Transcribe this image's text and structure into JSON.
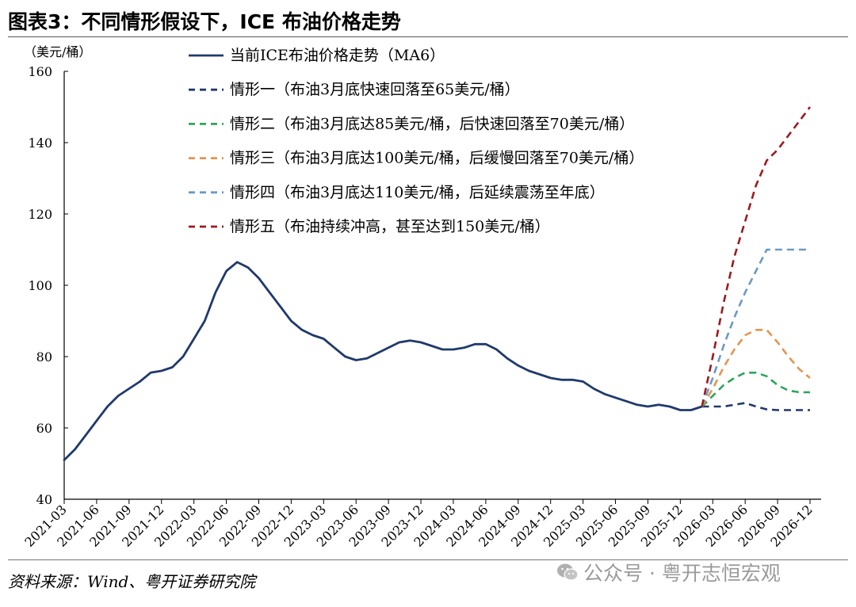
{
  "header": {
    "title": "图表3：不同情形假设下，ICE 布油价格走势",
    "unit": "（美元/桶）"
  },
  "footer": {
    "source": "资料来源：Wind、粤开证券研究院",
    "watermark": "公众号 · 粤开志恒宏观"
  },
  "chart_data": {
    "type": "line",
    "ylabel": "（美元/桶）",
    "ylim": [
      40,
      160
    ],
    "yticks": [
      40,
      60,
      80,
      100,
      120,
      140,
      160
    ],
    "xlim": [
      "2021-03",
      "2026-12"
    ],
    "xticks": [
      "2021-03",
      "2021-06",
      "2021-09",
      "2021-12",
      "2022-03",
      "2022-06",
      "2022-09",
      "2022-12",
      "2023-03",
      "2023-06",
      "2023-09",
      "2023-12",
      "2024-03",
      "2024-06",
      "2024-09",
      "2024-12",
      "2025-03",
      "2025-06",
      "2025-09",
      "2025-12",
      "2026-03",
      "2026-06",
      "2026-09",
      "2026-12"
    ],
    "grid": false,
    "legend_position": "top",
    "series": [
      {
        "name": "当前ICE布油价格走势（MA6）",
        "color": "#1f3a6b",
        "dash": "solid",
        "points": [
          [
            "2021-03",
            51
          ],
          [
            "2021-04",
            54
          ],
          [
            "2021-05",
            58
          ],
          [
            "2021-06",
            62
          ],
          [
            "2021-07",
            66
          ],
          [
            "2021-08",
            69
          ],
          [
            "2021-09",
            71
          ],
          [
            "2021-10",
            73
          ],
          [
            "2021-11",
            75.5
          ],
          [
            "2021-12",
            76
          ],
          [
            "2022-01",
            77
          ],
          [
            "2022-02",
            80
          ],
          [
            "2022-03",
            85
          ],
          [
            "2022-04",
            90
          ],
          [
            "2022-05",
            98
          ],
          [
            "2022-06",
            104
          ],
          [
            "2022-07",
            106.5
          ],
          [
            "2022-08",
            105
          ],
          [
            "2022-09",
            102
          ],
          [
            "2022-10",
            98
          ],
          [
            "2022-11",
            94
          ],
          [
            "2022-12",
            90
          ],
          [
            "2023-01",
            87.5
          ],
          [
            "2023-02",
            86
          ],
          [
            "2023-03",
            85
          ],
          [
            "2023-04",
            82.5
          ],
          [
            "2023-05",
            80
          ],
          [
            "2023-06",
            79
          ],
          [
            "2023-07",
            79.5
          ],
          [
            "2023-08",
            81
          ],
          [
            "2023-09",
            82.5
          ],
          [
            "2023-10",
            84
          ],
          [
            "2023-11",
            84.5
          ],
          [
            "2023-12",
            84
          ],
          [
            "2024-01",
            83
          ],
          [
            "2024-02",
            82
          ],
          [
            "2024-03",
            82
          ],
          [
            "2024-04",
            82.5
          ],
          [
            "2024-05",
            83.5
          ],
          [
            "2024-06",
            83.5
          ],
          [
            "2024-07",
            82
          ],
          [
            "2024-08",
            79.5
          ],
          [
            "2024-09",
            77.5
          ],
          [
            "2024-10",
            76
          ],
          [
            "2024-11",
            75
          ],
          [
            "2024-12",
            74
          ],
          [
            "2025-01",
            73.5
          ],
          [
            "2025-02",
            73.5
          ],
          [
            "2025-03",
            73
          ],
          [
            "2025-04",
            71
          ],
          [
            "2025-05",
            69.5
          ],
          [
            "2025-06",
            68.5
          ],
          [
            "2025-07",
            67.5
          ],
          [
            "2025-08",
            66.5
          ],
          [
            "2025-09",
            66
          ],
          [
            "2025-10",
            66.5
          ],
          [
            "2025-11",
            66
          ],
          [
            "2025-12",
            65
          ],
          [
            "2026-01",
            65
          ],
          [
            "2026-02",
            66
          ]
        ]
      },
      {
        "name": "情形一（布油3月底快速回落至65美元/桶）",
        "color": "#1f3a6b",
        "dash": "dashed",
        "points": [
          [
            "2026-02",
            66
          ],
          [
            "2026-03",
            66
          ],
          [
            "2026-04",
            66
          ],
          [
            "2026-05",
            66.5
          ],
          [
            "2026-06",
            67
          ],
          [
            "2026-07",
            66
          ],
          [
            "2026-08",
            65.2
          ],
          [
            "2026-09",
            65
          ],
          [
            "2026-10",
            65
          ],
          [
            "2026-11",
            65
          ],
          [
            "2026-12",
            65
          ]
        ]
      },
      {
        "name": "情形二（布油3月底达85美元/桶，后快速回落至70美元/桶）",
        "color": "#2aa65a",
        "dash": "dashed",
        "points": [
          [
            "2026-02",
            66
          ],
          [
            "2026-03",
            69
          ],
          [
            "2026-04",
            72
          ],
          [
            "2026-05",
            74
          ],
          [
            "2026-06",
            75.5
          ],
          [
            "2026-07",
            75.5
          ],
          [
            "2026-08",
            74.5
          ],
          [
            "2026-09",
            72
          ],
          [
            "2026-10",
            70.5
          ],
          [
            "2026-11",
            70
          ],
          [
            "2026-12",
            70
          ]
        ]
      },
      {
        "name": "情形三（布油3月底达100美元/桶，后缓慢回落至70美元/桶）",
        "color": "#e3954e",
        "dash": "dashed",
        "points": [
          [
            "2026-02",
            66
          ],
          [
            "2026-03",
            71
          ],
          [
            "2026-04",
            77
          ],
          [
            "2026-05",
            82
          ],
          [
            "2026-06",
            86
          ],
          [
            "2026-07",
            87.5
          ],
          [
            "2026-08",
            87.5
          ],
          [
            "2026-09",
            84
          ],
          [
            "2026-10",
            80
          ],
          [
            "2026-11",
            76.5
          ],
          [
            "2026-12",
            74
          ]
        ]
      },
      {
        "name": "情形四（布油3月底达110美元/桶，后延续震荡至年底）",
        "color": "#6a9ac4",
        "dash": "dashed",
        "points": [
          [
            "2026-02",
            66
          ],
          [
            "2026-03",
            74
          ],
          [
            "2026-04",
            83
          ],
          [
            "2026-05",
            91
          ],
          [
            "2026-06",
            98
          ],
          [
            "2026-07",
            104
          ],
          [
            "2026-08",
            110
          ],
          [
            "2026-09",
            110
          ],
          [
            "2026-10",
            110
          ],
          [
            "2026-11",
            110
          ],
          [
            "2026-12",
            110
          ]
        ]
      },
      {
        "name": "情形五（布油持续冲高，甚至达到150美元/桶）",
        "color": "#9b1b1e",
        "dash": "dashed",
        "points": [
          [
            "2026-02",
            66
          ],
          [
            "2026-03",
            80
          ],
          [
            "2026-04",
            95
          ],
          [
            "2026-05",
            108
          ],
          [
            "2026-06",
            118
          ],
          [
            "2026-07",
            128
          ],
          [
            "2026-08",
            135
          ],
          [
            "2026-09",
            138
          ],
          [
            "2026-10",
            142
          ],
          [
            "2026-11",
            146
          ],
          [
            "2026-12",
            150
          ]
        ]
      }
    ]
  }
}
